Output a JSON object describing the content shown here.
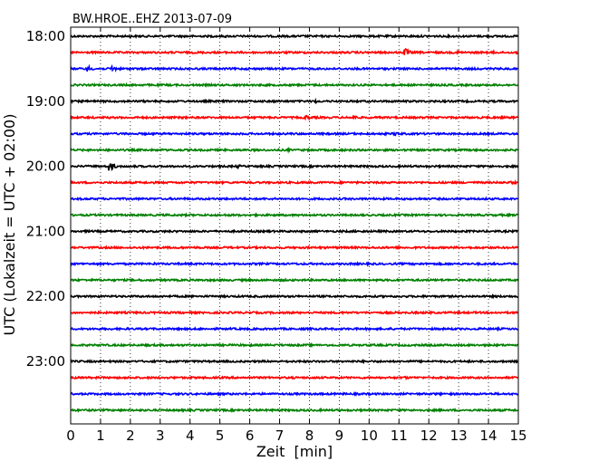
{
  "chart_data": {
    "type": "line",
    "title": "BW.HROE..EHZ 2013-07-09",
    "xlabel": "Zeit  [min]",
    "ylabel": "UTC (Lokalzeit = UTC + 02:00)",
    "xlim": [
      0,
      15
    ],
    "x_ticks": [
      "0",
      "1",
      "2",
      "3",
      "4",
      "5",
      "6",
      "7",
      "8",
      "9",
      "10",
      "11",
      "12",
      "13",
      "14",
      "15"
    ],
    "y_tick_labels": [
      "18:00",
      "19:00",
      "20:00",
      "21:00",
      "22:00",
      "23:00"
    ],
    "grid": "vertical dotted",
    "trace_colors": [
      "#000000",
      "#ff0000",
      "#0000ff",
      "#008000"
    ],
    "traces": [
      {
        "label": "18:00",
        "color": "#000000",
        "events": [
          {
            "t": 2.0,
            "amp": 1.5
          },
          {
            "t": 5.2,
            "amp": 1.2
          },
          {
            "t": 7.8,
            "amp": 1.2
          }
        ]
      },
      {
        "label": "18:15",
        "color": "#ff0000",
        "events": [
          {
            "t": 11.2,
            "amp": 5
          },
          {
            "t": 13.0,
            "amp": 2
          },
          {
            "t": 14.2,
            "amp": 1.5
          }
        ]
      },
      {
        "label": "18:30",
        "color": "#0000ff",
        "events": [
          {
            "t": 0.6,
            "amp": 3
          },
          {
            "t": 1.4,
            "amp": 3.5
          }
        ]
      },
      {
        "label": "18:45",
        "color": "#008000",
        "events": [
          {
            "t": 8.2,
            "amp": 1.2
          }
        ]
      },
      {
        "label": "19:00",
        "color": "#000000",
        "events": [
          {
            "t": 8.2,
            "amp": 2
          },
          {
            "t": 12.5,
            "amp": 1.2
          }
        ]
      },
      {
        "label": "19:15",
        "color": "#ff0000",
        "events": [
          {
            "t": 7.9,
            "amp": 3
          },
          {
            "t": 9.5,
            "amp": 2.5
          }
        ]
      },
      {
        "label": "19:30",
        "color": "#0000ff",
        "events": [
          {
            "t": 10.9,
            "amp": 2.5
          }
        ]
      },
      {
        "label": "19:45",
        "color": "#008000",
        "events": [
          {
            "t": 7.3,
            "amp": 1.5
          }
        ]
      },
      {
        "label": "20:00",
        "color": "#000000",
        "events": [
          {
            "t": 1.3,
            "amp": 6
          },
          {
            "t": 5.6,
            "amp": 2
          },
          {
            "t": 14.1,
            "amp": 1.5
          }
        ]
      },
      {
        "label": "20:15",
        "color": "#ff0000",
        "events": [
          {
            "t": 14.8,
            "amp": 2
          }
        ]
      },
      {
        "label": "20:30",
        "color": "#0000ff",
        "events": []
      },
      {
        "label": "20:45",
        "color": "#008000",
        "events": [
          {
            "t": 4.0,
            "amp": 1.2
          },
          {
            "t": 5.2,
            "amp": 1.2
          }
        ]
      },
      {
        "label": "21:00",
        "color": "#000000",
        "events": []
      },
      {
        "label": "21:15",
        "color": "#ff0000",
        "events": []
      },
      {
        "label": "21:30",
        "color": "#0000ff",
        "events": [
          {
            "t": 2.8,
            "amp": 1.5
          }
        ]
      },
      {
        "label": "21:45",
        "color": "#008000",
        "events": []
      },
      {
        "label": "22:00",
        "color": "#000000",
        "events": []
      },
      {
        "label": "22:15",
        "color": "#ff0000",
        "events": []
      },
      {
        "label": "22:30",
        "color": "#0000ff",
        "events": []
      },
      {
        "label": "22:45",
        "color": "#008000",
        "events": []
      },
      {
        "label": "23:00",
        "color": "#000000",
        "events": [
          {
            "t": 9.6,
            "amp": 1.2
          }
        ]
      },
      {
        "label": "23:15",
        "color": "#ff0000",
        "events": [
          {
            "t": 11.2,
            "amp": 2
          }
        ]
      },
      {
        "label": "23:30",
        "color": "#0000ff",
        "events": []
      },
      {
        "label": "23:45",
        "color": "#008000",
        "events": []
      }
    ]
  }
}
